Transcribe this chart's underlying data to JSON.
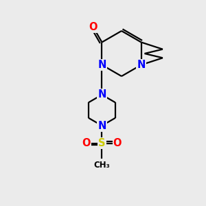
{
  "background_color": "#ebebeb",
  "atom_colors": {
    "N": "#0000ff",
    "O": "#ff0000",
    "S": "#cccc00",
    "C": "#000000"
  },
  "bond_color": "#000000",
  "lw": 1.6,
  "fontsize": 10.5
}
